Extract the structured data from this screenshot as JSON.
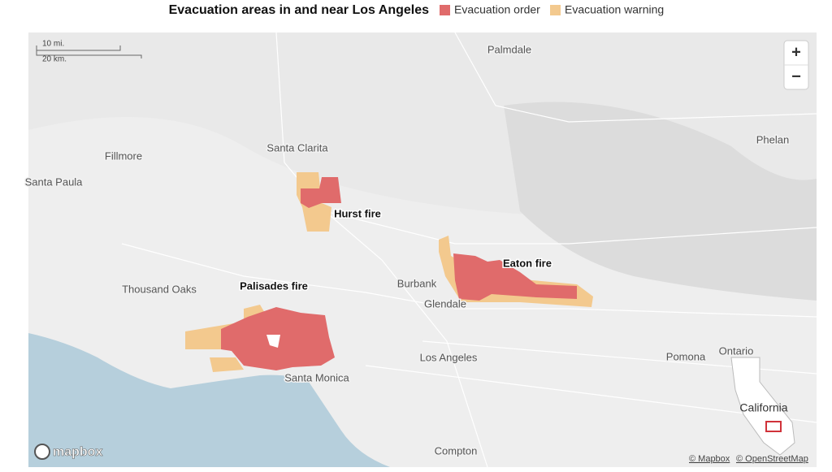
{
  "header": {
    "title": "Evacuation areas in and near Los Angeles",
    "legend": [
      {
        "label": "Evacuation order",
        "color": "#e06b6b"
      },
      {
        "label": "Evacuation warning",
        "color": "#f3c98e"
      }
    ]
  },
  "map": {
    "places": [
      "Palmdale",
      "Santa Clarita",
      "Fillmore",
      "Santa Paula",
      "Phelan",
      "Thousand Oaks",
      "Burbank",
      "Glendale",
      "Los Angeles",
      "Santa Monica",
      "Pomona",
      "Ontario",
      "Compton"
    ],
    "fires": [
      "Hurst fire",
      "Eaton fire",
      "Palisades fire"
    ],
    "scale": [
      "10 mi.",
      "20 km."
    ],
    "zoom": [
      "+",
      "−"
    ],
    "inset_label": "California",
    "logo": "mapbox",
    "attribution": [
      "© Mapbox",
      "© OpenStreetMap"
    ]
  }
}
